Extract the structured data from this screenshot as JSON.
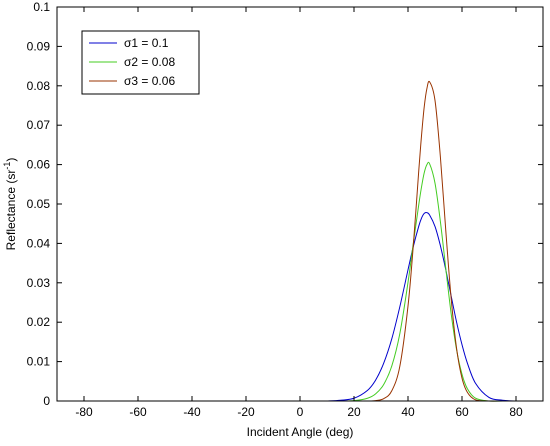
{
  "chart_data": {
    "type": "line",
    "title": "",
    "xlabel": "Incident Angle (deg)",
    "ylabel_main": "Reflectance (sr",
    "ylabel_sup": "-1",
    "ylabel_close": ")",
    "xlim": [
      -90,
      90
    ],
    "ylim": [
      0,
      0.1
    ],
    "xticks": [
      -80,
      -60,
      -40,
      -20,
      0,
      20,
      40,
      60,
      80
    ],
    "xtick_labels": [
      "-80",
      "-60",
      "-40",
      "-20",
      "0",
      "20",
      "40",
      "60",
      "80"
    ],
    "yticks": [
      0,
      0.01,
      0.02,
      0.03,
      0.04,
      0.05,
      0.06,
      0.07,
      0.08,
      0.09,
      0.1
    ],
    "ytick_labels": [
      "0",
      "0.01",
      "0.02",
      "0.03",
      "0.04",
      "0.05",
      "0.06",
      "0.07",
      "0.08",
      "0.09",
      "0.1"
    ],
    "grid": false,
    "legend_position": "top-left",
    "x": [
      10,
      15,
      20,
      25,
      28,
      31,
      34,
      37,
      40,
      42,
      44,
      45,
      46,
      47,
      48,
      50,
      52,
      54,
      56,
      58,
      60,
      62,
      65,
      70,
      75,
      80,
      85
    ],
    "series": [
      {
        "name": "σ1 = 0.1",
        "color": "#0000cc",
        "values": [
          0.0,
          0.0002,
          0.0007,
          0.0027,
          0.0053,
          0.0096,
          0.0158,
          0.024,
          0.0333,
          0.0393,
          0.0444,
          0.0464,
          0.0476,
          0.0478,
          0.0472,
          0.0443,
          0.0394,
          0.0333,
          0.0266,
          0.02,
          0.0143,
          0.0096,
          0.0045,
          0.0009,
          0.0002,
          0.0,
          0.0
        ]
      },
      {
        "name": "σ2 = 0.08",
        "color": "#44cc22",
        "values": [
          0.0,
          0.0,
          0.0001,
          0.0007,
          0.0018,
          0.0042,
          0.0089,
          0.0172,
          0.0301,
          0.0402,
          0.0499,
          0.0543,
          0.0579,
          0.06,
          0.0602,
          0.0553,
          0.0455,
          0.0336,
          0.0221,
          0.013,
          0.0068,
          0.0031,
          0.0007,
          0.0,
          0.0,
          0.0,
          0.0
        ]
      },
      {
        "name": "σ3 = 0.06",
        "color": "#993300",
        "values": [
          0.0,
          0.0,
          0.0,
          0.0,
          0.0001,
          0.0006,
          0.0026,
          0.0089,
          0.0241,
          0.0398,
          0.0586,
          0.0673,
          0.0746,
          0.0793,
          0.081,
          0.0763,
          0.0619,
          0.0432,
          0.0259,
          0.0133,
          0.0058,
          0.0022,
          0.0003,
          0.0,
          0.0,
          0.0,
          0.0
        ]
      }
    ]
  }
}
